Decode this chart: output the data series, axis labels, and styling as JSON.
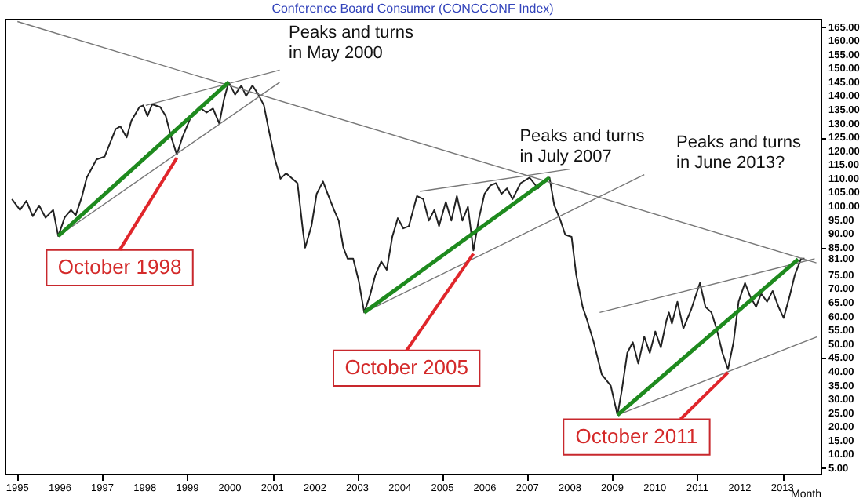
{
  "chart_data": {
    "type": "line",
    "title": "Conference Board Consumer (CONCCONF Index)",
    "xlabel": "Month",
    "xlim": [
      1994.7,
      2013.9
    ],
    "ylim": [
      3,
      168
    ],
    "xticks": [
      1995,
      1996,
      1997,
      1998,
      1999,
      2000,
      2001,
      2002,
      2003,
      2004,
      2005,
      2006,
      2007,
      2008,
      2009,
      2010,
      2011,
      2012,
      2013
    ],
    "yticks": [
      {
        "value": 5,
        "label": "5.00"
      },
      {
        "value": 10,
        "label": "10.00"
      },
      {
        "value": 15,
        "label": "15.00"
      },
      {
        "value": 20,
        "label": "20.00"
      },
      {
        "value": 25,
        "label": "25.00"
      },
      {
        "value": 30,
        "label": "30.00"
      },
      {
        "value": 35,
        "label": "35.00"
      },
      {
        "value": 40,
        "label": "40.00"
      },
      {
        "value": 45,
        "label": "45.00"
      },
      {
        "value": 50,
        "label": "50.00"
      },
      {
        "value": 55,
        "label": "55.00"
      },
      {
        "value": 60,
        "label": "60.00"
      },
      {
        "value": 65,
        "label": "65.00"
      },
      {
        "value": 70,
        "label": "70.00"
      },
      {
        "value": 75,
        "label": "75.00"
      },
      {
        "value": 81,
        "label": "81.00"
      },
      {
        "value": 85,
        "label": "85.00"
      },
      {
        "value": 90,
        "label": "90.00"
      },
      {
        "value": 95,
        "label": "95.00"
      },
      {
        "value": 100,
        "label": "100.00"
      },
      {
        "value": 105,
        "label": "105.00"
      },
      {
        "value": 110,
        "label": "110.00"
      },
      {
        "value": 115,
        "label": "115.00"
      },
      {
        "value": 120,
        "label": "120.00"
      },
      {
        "value": 125,
        "label": "125.00"
      },
      {
        "value": 130,
        "label": "130.00"
      },
      {
        "value": 135,
        "label": "135.00"
      },
      {
        "value": 140,
        "label": "140.00"
      },
      {
        "value": 145,
        "label": "145.00"
      },
      {
        "value": 150,
        "label": "150.00"
      },
      {
        "value": 155,
        "label": "155.00"
      },
      {
        "value": 160,
        "label": "160.00"
      },
      {
        "value": 165,
        "label": "165.00"
      }
    ],
    "series": [
      {
        "type": "line",
        "color": "#222222",
        "x": [
          1994.87,
          1995.06,
          1995.21,
          1995.36,
          1995.51,
          1995.66,
          1995.84,
          1995.96,
          1996.11,
          1996.26,
          1996.37,
          1996.52,
          1996.63,
          1996.86,
          1997.05,
          1997.31,
          1997.42,
          1997.57,
          1997.68,
          1997.87,
          1997.96,
          1998.06,
          1998.17,
          1998.36,
          1998.49,
          1998.62,
          1998.75,
          1998.88,
          1999.07,
          1999.28,
          1999.45,
          1999.6,
          1999.75,
          1999.86,
          1999.97,
          2000.12,
          2000.27,
          2000.38,
          2000.53,
          2000.67,
          2000.8,
          2000.91,
          2001.06,
          2001.19,
          2001.32,
          2001.59,
          2001.72,
          2001.77,
          2001.92,
          2002.04,
          2002.19,
          2002.3,
          2002.45,
          2002.56,
          2002.67,
          2002.77,
          2002.9,
          2003.03,
          2003.16,
          2003.29,
          2003.42,
          2003.56,
          2003.69,
          2003.82,
          2003.95,
          2004.08,
          2004.21,
          2004.4,
          2004.55,
          2004.68,
          2004.81,
          2004.92,
          2005.08,
          2005.21,
          2005.34,
          2005.47,
          2005.6,
          2005.73,
          2005.86,
          2005.99,
          2006.13,
          2006.26,
          2006.39,
          2006.52,
          2006.65,
          2006.84,
          2007.05,
          2007.25,
          2007.4,
          2007.52,
          2007.63,
          2007.78,
          2007.89,
          2008.04,
          2008.15,
          2008.3,
          2008.41,
          2008.56,
          2008.75,
          2008.96,
          2009.12,
          2009.22,
          2009.35,
          2009.48,
          2009.61,
          2009.75,
          2009.88,
          2010.01,
          2010.14,
          2010.27,
          2010.33,
          2010.4,
          2010.53,
          2010.67,
          2010.85,
          2011.06,
          2011.19,
          2011.33,
          2011.45,
          2011.59,
          2011.72,
          2011.85,
          2011.97,
          2012.12,
          2012.24,
          2012.38,
          2012.5,
          2012.64,
          2012.77,
          2012.91,
          2013.03,
          2013.17,
          2013.29,
          2013.44,
          2013.52
        ],
        "values": [
          102.6,
          98.7,
          102,
          96.4,
          100.3,
          95.9,
          98.7,
          89.2,
          95.9,
          98.7,
          96.7,
          103.7,
          110.4,
          117,
          118,
          128,
          129,
          125,
          131,
          136,
          136.6,
          132.7,
          137,
          136,
          132.7,
          125,
          118.7,
          125,
          132,
          136,
          134,
          135.5,
          130,
          138.8,
          145,
          140.5,
          143.8,
          140,
          143.8,
          140.5,
          136.6,
          128,
          117,
          110,
          112,
          108.4,
          90.9,
          85,
          93,
          104.5,
          109,
          104.5,
          98.7,
          94.8,
          85,
          81,
          81,
          73,
          61.5,
          67.4,
          75,
          80,
          77,
          88.9,
          95.7,
          92,
          92.8,
          103.7,
          102.6,
          94.8,
          98.7,
          92.8,
          101.6,
          94.8,
          103.7,
          94.8,
          99.8,
          84,
          95.7,
          104.5,
          107.6,
          108.4,
          104.5,
          106.5,
          102.6,
          108.4,
          110.4,
          106.5,
          109,
          110.4,
          100.5,
          94.8,
          89.7,
          88.9,
          75,
          63.5,
          58.5,
          50.7,
          39,
          35,
          24.3,
          33.1,
          46.8,
          50.7,
          43,
          52.7,
          46.8,
          54.6,
          48.8,
          58.5,
          61.5,
          57.5,
          65.4,
          55.7,
          62.4,
          72.2,
          63.5,
          61.5,
          55.7,
          46.8,
          40.9,
          50.7,
          65.4,
          72.2,
          67.4,
          63.5,
          68.3,
          65.4,
          69.3,
          63.5,
          59.5,
          67.4,
          75,
          81,
          81
        ]
      },
      {
        "type": "line",
        "color": "#777777",
        "x": [
          1995.0,
          2013.8
        ],
        "values": [
          167,
          79.5
        ]
      },
      {
        "type": "line",
        "color": "#777777",
        "x": [
          1998.02,
          2001.17
        ],
        "values": [
          136.6,
          149.4
        ]
      },
      {
        "type": "line",
        "color": "#777777",
        "x": [
          1995.96,
          2001.17
        ],
        "values": [
          89.2,
          145
        ]
      },
      {
        "type": "line",
        "color": "#1e8a1e",
        "x": [
          1995.96,
          1999.97
        ],
        "values": [
          89.2,
          145
        ]
      },
      {
        "type": "line",
        "color": "#777777",
        "x": [
          2004.47,
          2008.0
        ],
        "values": [
          105.4,
          113.5
        ]
      },
      {
        "type": "line",
        "color": "#777777",
        "x": [
          2003.16,
          2009.75
        ],
        "values": [
          61.5,
          111.5
        ]
      },
      {
        "type": "line",
        "color": "#1e8a1e",
        "x": [
          2003.16,
          2007.52
        ],
        "values": [
          61.5,
          110.4
        ]
      },
      {
        "type": "line",
        "color": "#777777",
        "x": [
          2008.7,
          2013.76
        ],
        "values": [
          61.5,
          81
        ]
      },
      {
        "type": "line",
        "color": "#777777",
        "x": [
          2009.12,
          2013.82
        ],
        "values": [
          24.3,
          52.7
        ]
      },
      {
        "type": "line",
        "color": "#1e8a1e",
        "x": [
          2009.12,
          2013.37
        ],
        "values": [
          24.3,
          80.8
        ]
      }
    ],
    "annotations": [
      "Peaks and turns\nin May 2000",
      {
        "text": "Peaks and turns\nin July 2007",
        "x": 2007.52,
        "y": 110.4
      },
      "Peaks and turns\nin June 2013?",
      {
        "text": "October 1998",
        "x": 1998.75,
        "y": 118.7
      },
      {
        "text": "October 2005",
        "x": 2005.73,
        "y": 84
      },
      {
        "text": "October 2011",
        "x": 2011.72,
        "y": 40.9
      }
    ]
  }
}
